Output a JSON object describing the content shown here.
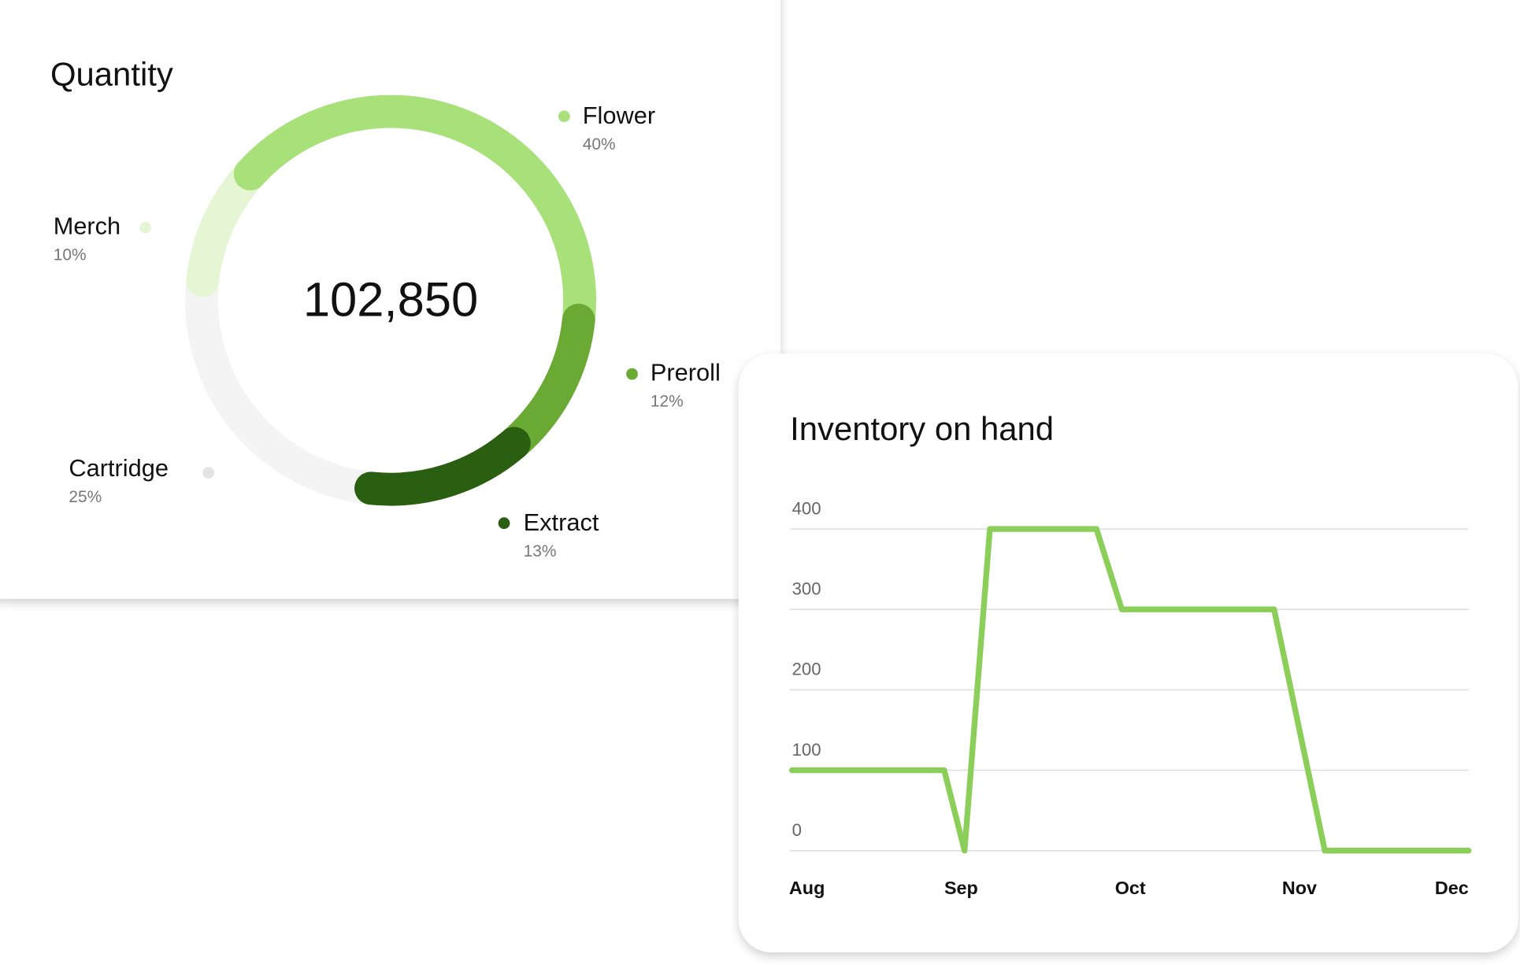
{
  "chart_data": [
    {
      "type": "donut",
      "title": "Quantity",
      "center_label": "102,850",
      "categories": [
        "Flower",
        "Preroll",
        "Extract",
        "Cartridge",
        "Merch"
      ],
      "values": [
        40,
        12,
        13,
        25,
        10
      ],
      "value_labels": [
        "40%",
        "12%",
        "13%",
        "25%",
        "10%"
      ],
      "colors": [
        "#a8e07a",
        "#6aaa34",
        "#2a5e10",
        "#f4f4f4",
        "#e6f6d4"
      ]
    },
    {
      "type": "line",
      "title": "Inventory on hand",
      "x": [
        0,
        0.9,
        1.02,
        1.17,
        1.8,
        1.95,
        2.85,
        3.15,
        4
      ],
      "series": [
        {
          "name": "Inventory",
          "color": "#8bcf5a",
          "values": [
            100,
            100,
            0,
            400,
            400,
            300,
            300,
            0,
            0
          ]
        }
      ],
      "xlim": [
        0,
        4
      ],
      "xticks": [
        {
          "value": 0,
          "label": "Aug"
        },
        {
          "value": 1,
          "label": "Sep"
        },
        {
          "value": 2,
          "label": "Oct"
        },
        {
          "value": 3,
          "label": "Nov"
        },
        {
          "value": 4,
          "label": "Dec"
        }
      ],
      "ylim": [
        0,
        400
      ],
      "yticks": [
        0,
        100,
        200,
        300,
        400
      ],
      "grid": true
    }
  ]
}
